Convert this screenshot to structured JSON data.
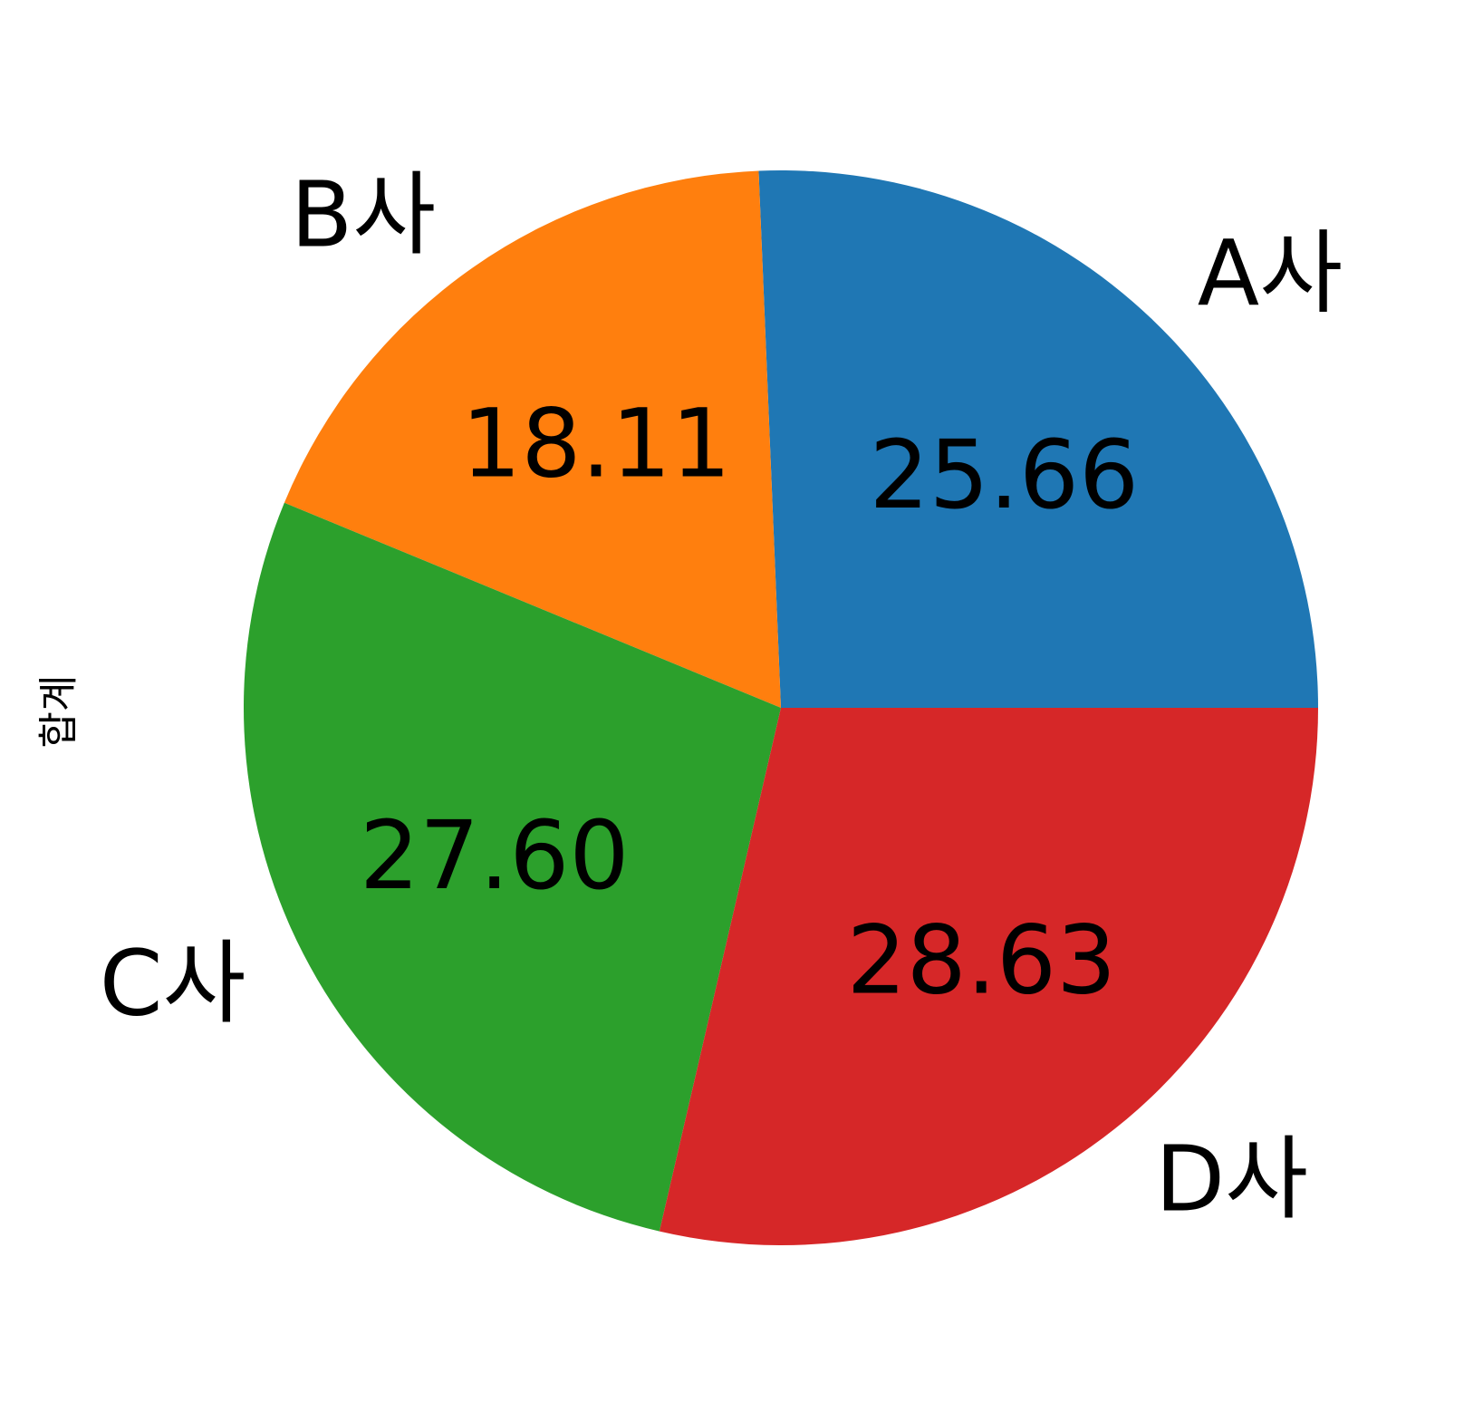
{
  "chart_data": {
    "type": "pie",
    "ylabel": "합계",
    "labels": [
      "A사",
      "B사",
      "C사",
      "D사"
    ],
    "values": [
      25.66,
      18.11,
      27.6,
      28.63
    ],
    "value_labels": [
      "25.66",
      "18.11",
      "27.60",
      "28.63"
    ],
    "colors": [
      "#1f77b4",
      "#ff7f0e",
      "#2ca02c",
      "#d62728"
    ],
    "start_angle_deg": 0,
    "direction": "counterclockwise"
  }
}
